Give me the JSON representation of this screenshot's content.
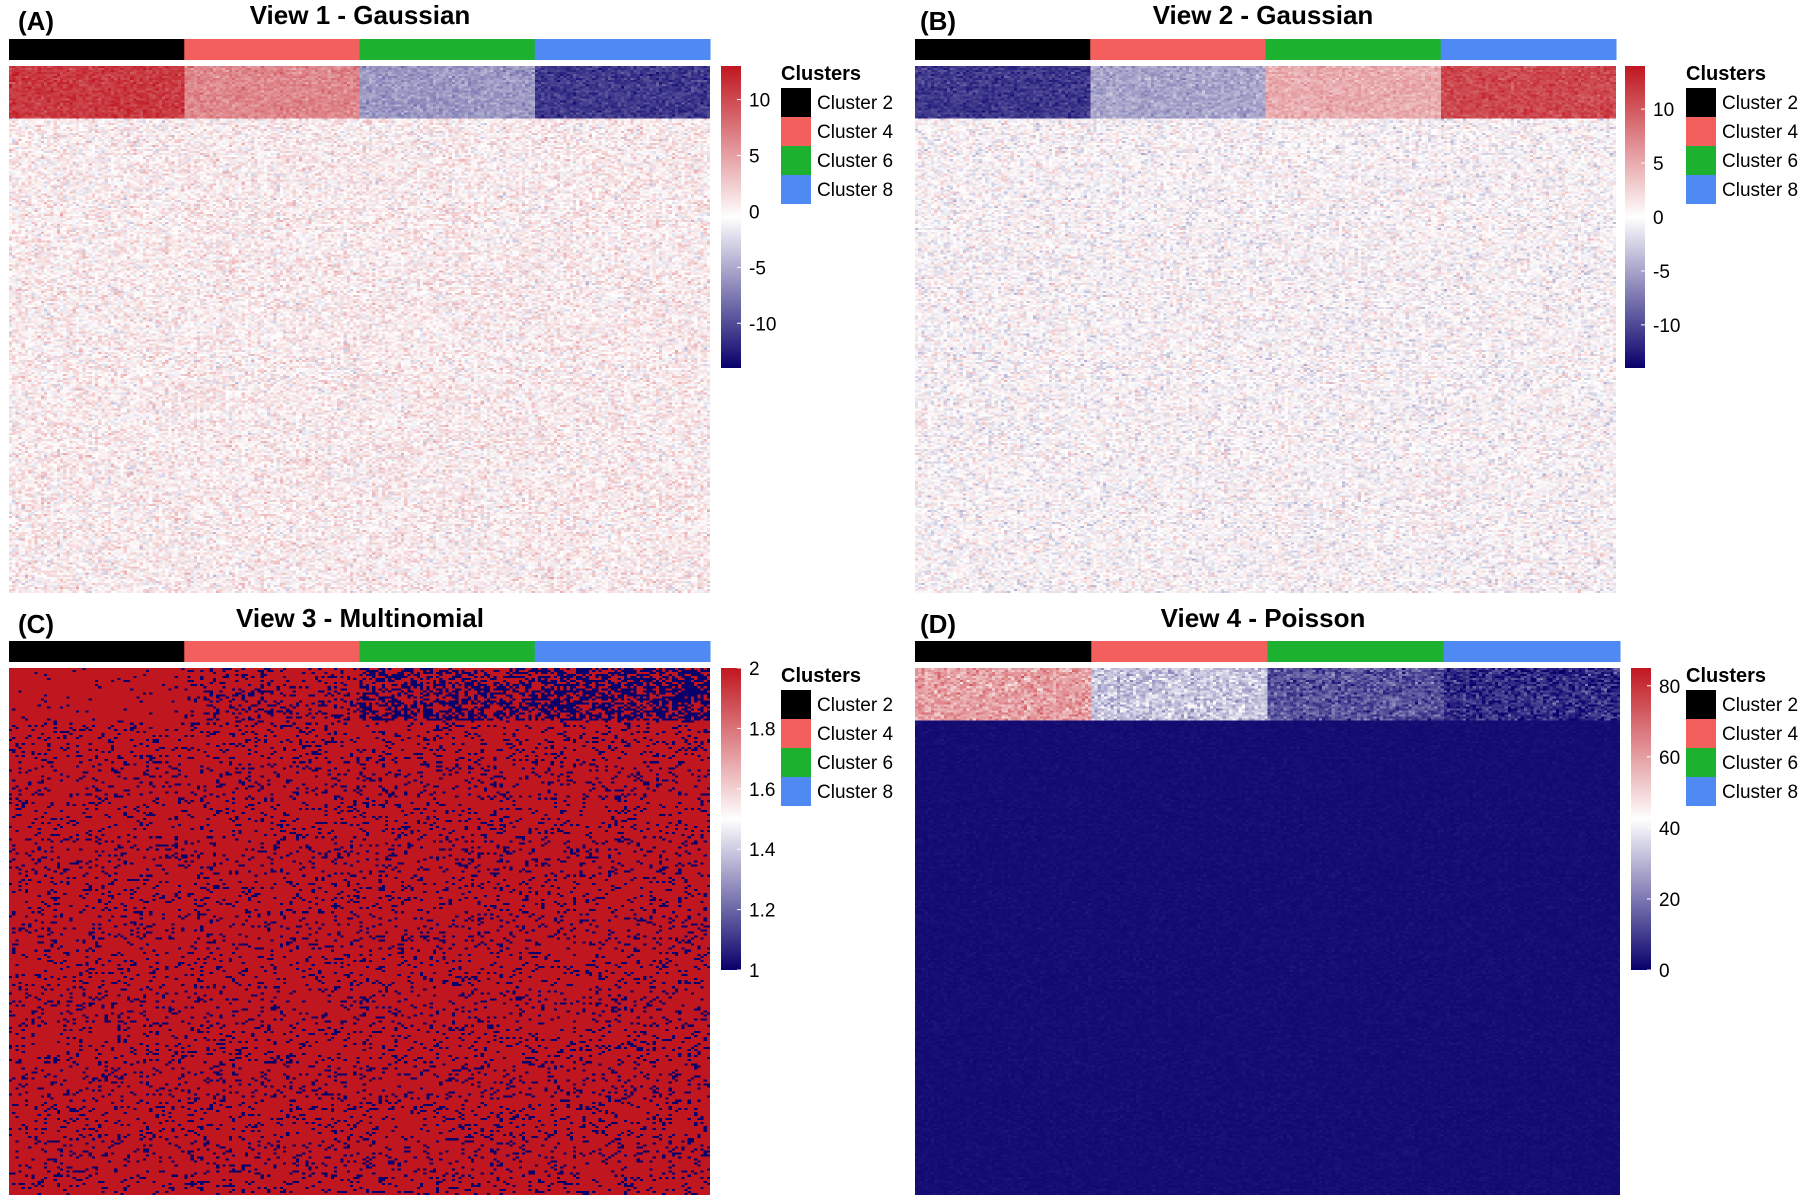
{
  "chart_data": [
    {
      "type": "heatmap",
      "panel_label": "(A)",
      "title": "View 1 - Gaussian",
      "clusters": [
        "Cluster 2",
        "Cluster 4",
        "Cluster 6",
        "Cluster 8"
      ],
      "colorbar": {
        "min": -14,
        "max": 13,
        "ticks": [
          10,
          5,
          0,
          -5,
          -10
        ],
        "low": "#08006b",
        "mid": "#ffffff",
        "high": "#c0161f"
      },
      "block_means": [
        11,
        6.5,
        -6,
        -11
      ],
      "background": {
        "mean": 0.35,
        "spread": 2.2
      },
      "top_band_fraction": 0.1
    },
    {
      "type": "heatmap",
      "panel_label": "(B)",
      "title": "View 2 - Gaussian",
      "clusters": [
        "Cluster 2",
        "Cluster 4",
        "Cluster 6",
        "Cluster 8"
      ],
      "colorbar": {
        "min": -14,
        "max": 14,
        "ticks": [
          10,
          5,
          0,
          -5,
          -10
        ],
        "low": "#08006b",
        "mid": "#ffffff",
        "high": "#c0161f"
      },
      "block_means": [
        -11,
        -5,
        5,
        11
      ],
      "background": {
        "mean": 0.0,
        "spread": 2.2
      },
      "top_band_fraction": 0.1
    },
    {
      "type": "heatmap",
      "panel_label": "(C)",
      "title": "View 3 - Multinomial",
      "clusters": [
        "Cluster 2",
        "Cluster 4",
        "Cluster 6",
        "Cluster 8"
      ],
      "colorbar": {
        "min": 1,
        "max": 2,
        "ticks": [
          2,
          1.8,
          1.6,
          1.4,
          1.2,
          1
        ],
        "low": "#08006b",
        "mid": "#ffffff",
        "high": "#c0161f"
      },
      "block_prob_low": [
        0.03,
        0.2,
        0.45,
        0.6
      ],
      "background": {
        "prob_low": 0.13
      },
      "top_band_fraction": 0.1
    },
    {
      "type": "heatmap",
      "panel_label": "(D)",
      "title": "View 4 - Poisson",
      "clusters": [
        "Cluster 2",
        "Cluster 4",
        "Cluster 6",
        "Cluster 8"
      ],
      "colorbar": {
        "min": 0,
        "max": 85,
        "ticks": [
          80,
          60,
          40,
          20,
          0
        ],
        "low": "#08006b",
        "mid": "#ffffff",
        "high": "#c0161f"
      },
      "block_means": [
        60,
        33,
        14,
        7
      ],
      "background": {
        "mean": 1.5
      },
      "top_band_fraction": 0.1
    }
  ],
  "legend": {
    "title": "Clusters",
    "items": [
      {
        "label": "Cluster 2",
        "color": "#000000"
      },
      {
        "label": "Cluster 4",
        "color": "#f25f5c"
      },
      {
        "label": "Cluster 6",
        "color": "#1cb22f"
      },
      {
        "label": "Cluster 8",
        "color": "#4f8af4"
      }
    ]
  }
}
